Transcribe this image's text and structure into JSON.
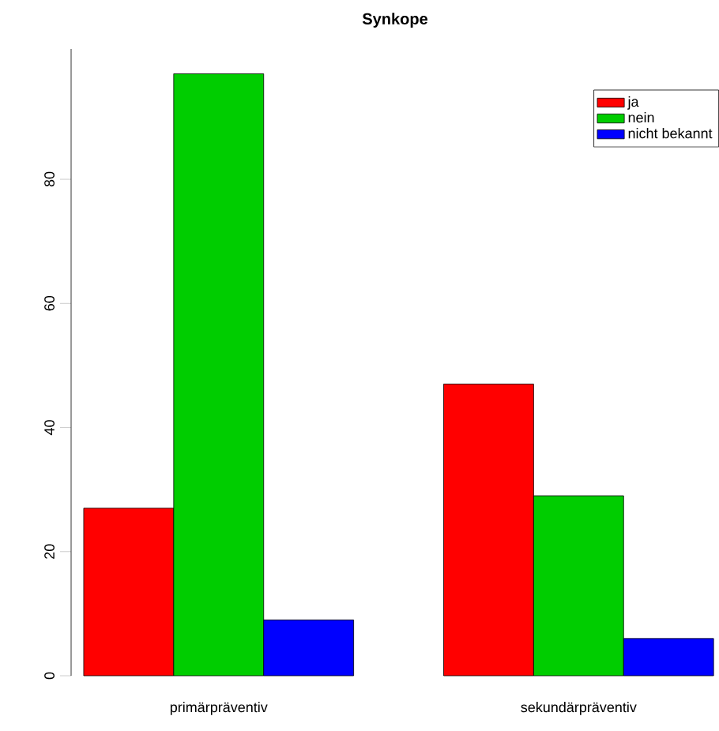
{
  "chart_data": {
    "type": "bar",
    "title": "Synkope",
    "categories": [
      "primärpräventiv",
      "sekundärpräventiv"
    ],
    "series": [
      {
        "name": "ja",
        "color": "#ff0000",
        "values": [
          27,
          47
        ]
      },
      {
        "name": "nein",
        "color": "#00cd00",
        "values": [
          97,
          29
        ]
      },
      {
        "name": "nicht bekannt",
        "color": "#0000ff",
        "values": [
          9,
          6
        ]
      }
    ],
    "ylim": [
      0,
      101
    ],
    "yticks": [
      0,
      20,
      40,
      60,
      80
    ],
    "legend": "top right"
  }
}
